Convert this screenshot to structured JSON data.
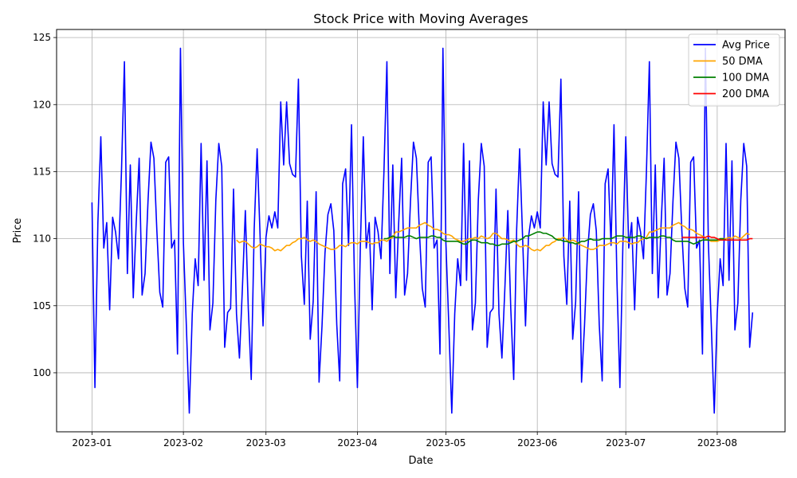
{
  "chart_data": {
    "type": "line",
    "title": "Stock Price with Moving Averages",
    "xlabel": "Date",
    "ylabel": "Price",
    "x_start": "2023-01-01",
    "x_end": "2023-08-13",
    "xlim": [
      "2022-12-20",
      "2023-08-24"
    ],
    "ylim": [
      95.6,
      125.6
    ],
    "grid": true,
    "legend_position": "top-right",
    "x_ticks": [
      "2023-01",
      "2023-02",
      "2023-03",
      "2023-04",
      "2023-05",
      "2023-06",
      "2023-07",
      "2023-08"
    ],
    "y_ticks": [
      100,
      105,
      110,
      115,
      120,
      125
    ],
    "series": [
      {
        "name": "Avg Price",
        "color": "#0000ff",
        "values": [
          112.7,
          98.9,
          111.2,
          117.6,
          109.3,
          111.2,
          104.7,
          111.6,
          110.5,
          108.5,
          115.0,
          123.2,
          107.4,
          115.5,
          105.6,
          111.2,
          116.0,
          105.8,
          107.4,
          112.8,
          117.2,
          116.0,
          110.6,
          106.0,
          104.9,
          115.7,
          116.1,
          109.3,
          109.9,
          101.4,
          124.2,
          109.7,
          103.5,
          97.0,
          104.4,
          108.5,
          106.5,
          117.1,
          106.9,
          115.8,
          103.2,
          105.2,
          112.9,
          117.1,
          115.4,
          101.9,
          104.5,
          104.8,
          113.7,
          104.4,
          101.1,
          106.3,
          112.1,
          104.8,
          99.5,
          110.7,
          116.7,
          110.2,
          103.5,
          110.1,
          111.7,
          110.8,
          112.0,
          110.8,
          120.2,
          115.5,
          120.2,
          115.6,
          114.8,
          114.6,
          121.9,
          108.7,
          105.1,
          112.8,
          102.5,
          105.3,
          113.5,
          99.3,
          103.5,
          108.9,
          111.8,
          112.6,
          110.6,
          103.6,
          99.4,
          114.1,
          115.2,
          109.5,
          118.5,
          106.9,
          98.9,
          109.4,
          117.6,
          109.3,
          111.2,
          104.7,
          111.6,
          110.5,
          108.5,
          115.0,
          123.2,
          107.4,
          115.5,
          105.6,
          111.2,
          116.0,
          105.8,
          107.4,
          112.8,
          117.2,
          116.0,
          110.6,
          106.3,
          104.9,
          115.7,
          116.1,
          109.3,
          109.9,
          101.4,
          124.2,
          109.7,
          103.5,
          97.0,
          104.4,
          108.5,
          106.5,
          117.1,
          106.9,
          115.8,
          103.2,
          105.2,
          112.9,
          117.1,
          115.4,
          101.9,
          104.5,
          104.8,
          113.7,
          104.4,
          101.1,
          106.3,
          112.1,
          104.8,
          99.5,
          110.7,
          116.7,
          110.2,
          103.5,
          110.1,
          111.7,
          110.8,
          112.0,
          110.8,
          120.2,
          115.5,
          120.2,
          115.6,
          114.8,
          114.6,
          121.9,
          108.7,
          105.1,
          112.8,
          102.5,
          105.3,
          113.5,
          99.3,
          103.5,
          108.9,
          111.8,
          112.6,
          110.6,
          103.6,
          99.4,
          114.1,
          115.2,
          109.5,
          118.5,
          106.9,
          98.9,
          109.4,
          117.6,
          109.3,
          111.2,
          104.7,
          111.6,
          110.5,
          108.5,
          115.0,
          123.2,
          107.4,
          115.5,
          105.6,
          111.2,
          116.0,
          105.8,
          107.4,
          112.8,
          117.2,
          116.0,
          110.6,
          106.3,
          104.9,
          115.7,
          116.1,
          109.3,
          109.9,
          101.4,
          124.2,
          109.7,
          103.5,
          97.0,
          104.4,
          108.5,
          106.5,
          117.1,
          106.9,
          115.8,
          103.2,
          105.2,
          112.9,
          117.1,
          115.4,
          101.9,
          104.5
        ]
      },
      {
        "name": "50 DMA",
        "color": "#ffa500",
        "start": "2023-02-19",
        "values": [
          109.9,
          109.7,
          109.8,
          109.8,
          109.6,
          109.4,
          109.3,
          109.4,
          109.6,
          109.5,
          109.4,
          109.4,
          109.3,
          109.1,
          109.2,
          109.1,
          109.3,
          109.5,
          109.5,
          109.7,
          109.8,
          110.0,
          110.0,
          110.1,
          109.9,
          109.8,
          109.9,
          109.8,
          109.6,
          109.5,
          109.4,
          109.3,
          109.2,
          109.2,
          109.3,
          109.5,
          109.5,
          109.4,
          109.6,
          109.7,
          109.7,
          109.6,
          109.8,
          109.8,
          109.8,
          109.7,
          109.6,
          109.7,
          109.7,
          109.9,
          109.9,
          109.8,
          110.0,
          110.1,
          110.5,
          110.5,
          110.6,
          110.7,
          110.8,
          110.8,
          110.8,
          110.8,
          111.0,
          111.1,
          111.2,
          111.0,
          110.9,
          110.7,
          110.7,
          110.6,
          110.4,
          110.3,
          110.3,
          110.2,
          110.0,
          109.9,
          109.8,
          109.8,
          109.9,
          110.0,
          110.0,
          110.1,
          110.0,
          110.2,
          110.1,
          110.0,
          110.1,
          110.4,
          110.4,
          110.2,
          110.0,
          110.0,
          109.9,
          109.8,
          109.9,
          109.6,
          109.4,
          109.4,
          109.5,
          109.4,
          109.2,
          109.1,
          109.2,
          109.1,
          109.3,
          109.5,
          109.5,
          109.7,
          109.8,
          110.0,
          110.0,
          110.1,
          109.9,
          109.8,
          109.9,
          109.8,
          109.6,
          109.5,
          109.4,
          109.3,
          109.2,
          109.2,
          109.3,
          109.5,
          109.5,
          109.5,
          109.6,
          109.7,
          109.7,
          109.6,
          109.8,
          109.8,
          109.8,
          109.7,
          109.6,
          109.7,
          109.7,
          109.9,
          110.0,
          110.1,
          110.5,
          110.5,
          110.6,
          110.7,
          110.8,
          110.8,
          110.8,
          110.8,
          111.0,
          111.1,
          111.2,
          111.0,
          110.9,
          110.7,
          110.7,
          110.6,
          110.4,
          110.3,
          110.2,
          110.0,
          109.9,
          109.8,
          109.8,
          109.8,
          109.9,
          110.0,
          110.0,
          110.1,
          110.0,
          110.2,
          110.1,
          110.0,
          110.2,
          110.4,
          110.3
        ]
      },
      {
        "name": "100 DMA",
        "color": "#008000",
        "start": "2023-04-10",
        "values": [
          110.0,
          110.0,
          110.1,
          110.2,
          110.1,
          110.1,
          110.1,
          110.1,
          110.2,
          110.2,
          110.1,
          110.0,
          110.1,
          110.1,
          110.1,
          110.1,
          110.2,
          110.2,
          110.1,
          110.1,
          109.9,
          109.8,
          109.8,
          109.8,
          109.8,
          109.8,
          109.7,
          109.6,
          109.6,
          109.8,
          109.9,
          109.9,
          109.8,
          109.7,
          109.7,
          109.7,
          109.6,
          109.6,
          109.5,
          109.5,
          109.6,
          109.6,
          109.6,
          109.7,
          109.8,
          109.8,
          109.9,
          110.0,
          110.2,
          110.2,
          110.3,
          110.4,
          110.5,
          110.5,
          110.4,
          110.4,
          110.3,
          110.2,
          110.0,
          109.9,
          109.9,
          109.8,
          109.8,
          109.7,
          109.7,
          109.6,
          109.7,
          109.8,
          109.8,
          109.9,
          110.0,
          109.9,
          109.9,
          109.9,
          110.0,
          110.0,
          110.0,
          110.0,
          110.1,
          110.2,
          110.2,
          110.2,
          110.1,
          110.1,
          110.1,
          110.1,
          110.2,
          110.2,
          110.1,
          110.0,
          110.1,
          110.1,
          110.1,
          110.1,
          110.2,
          110.2,
          110.1,
          110.1,
          109.9,
          109.8,
          109.8,
          109.8,
          109.8,
          109.8,
          109.7,
          109.6,
          109.7,
          109.8,
          109.9,
          109.9,
          109.9,
          109.9,
          109.9,
          109.9,
          110.0,
          110.0,
          109.9
        ]
      },
      {
        "name": "200 DMA",
        "color": "#ff0000",
        "start": "2023-07-20",
        "values": [
          110.1,
          110.1,
          110.1,
          110.1,
          110.1,
          110.1,
          110.1,
          110.1,
          110.1,
          110.2,
          110.1,
          110.1,
          110.0,
          109.9,
          109.9,
          109.9,
          109.9,
          109.9,
          109.9,
          109.9,
          109.9,
          109.9,
          109.9,
          110.0,
          110.0
        ]
      }
    ]
  }
}
